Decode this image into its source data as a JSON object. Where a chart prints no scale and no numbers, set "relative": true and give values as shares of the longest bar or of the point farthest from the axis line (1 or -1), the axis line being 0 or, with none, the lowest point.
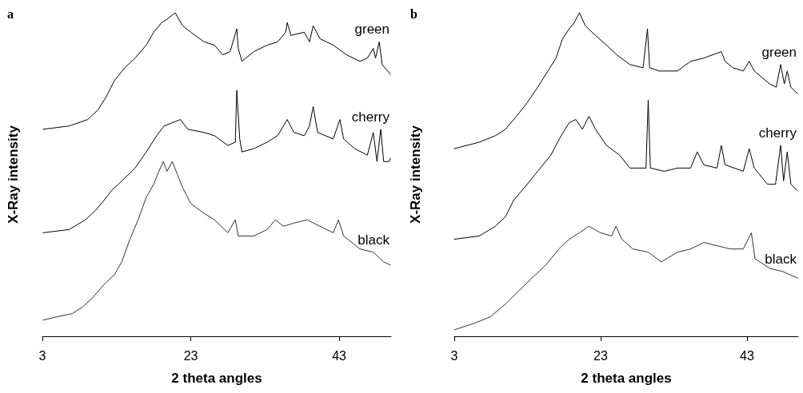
{
  "chart_data": [
    {
      "type": "line",
      "title": "a",
      "xlabel": "2 theta angles",
      "ylabel": "X-Ray intensity",
      "relative": true,
      "xlim": [
        3,
        50
      ],
      "xticks": [
        3,
        23,
        43
      ],
      "grid": false,
      "legend": false,
      "marker": "none",
      "line_style": "solid",
      "series": [
        {
          "name": "green",
          "color": "#000000",
          "x": [
            3.1,
            6.6,
            9.1,
            10.5,
            11.6,
            12.7,
            14.1,
            15.5,
            17.0,
            18.0,
            19.1,
            19.8,
            20.9,
            21.9,
            23.0,
            24.8,
            26.2,
            27.3,
            28.3,
            29.2,
            29.4,
            29.9,
            31.5,
            33.3,
            34.7,
            35.8,
            36.0,
            36.5,
            38.3,
            39.0,
            39.5,
            40.4,
            42.2,
            44.0,
            45.8,
            46.8,
            47.6,
            47.9,
            48.4,
            48.8,
            49.9
          ],
          "values": [
            0.64,
            0.65,
            0.67,
            0.7,
            0.74,
            0.79,
            0.83,
            0.86,
            0.9,
            0.94,
            0.97,
            0.98,
            1.0,
            0.96,
            0.94,
            0.91,
            0.9,
            0.87,
            0.88,
            0.95,
            0.89,
            0.85,
            0.88,
            0.9,
            0.91,
            0.94,
            0.97,
            0.93,
            0.94,
            0.91,
            0.96,
            0.92,
            0.9,
            0.87,
            0.85,
            0.86,
            0.89,
            0.86,
            0.91,
            0.84,
            0.81
          ]
        },
        {
          "name": "cherry",
          "color": "#000000",
          "x": [
            3.1,
            6.6,
            8.8,
            10.2,
            11.3,
            12.3,
            13.7,
            15.5,
            17.0,
            18.4,
            19.4,
            20.5,
            21.6,
            22.6,
            24.8,
            26.2,
            28.0,
            29.0,
            29.2,
            29.6,
            29.9,
            31.5,
            33.3,
            34.7,
            36.0,
            36.9,
            38.3,
            39.0,
            39.5,
            40.1,
            42.2,
            43.1,
            43.6,
            45.1,
            46.8,
            47.6,
            48.1,
            48.6,
            49.0,
            49.7,
            49.9
          ],
          "values": [
            0.32,
            0.33,
            0.36,
            0.39,
            0.42,
            0.45,
            0.48,
            0.52,
            0.57,
            0.62,
            0.65,
            0.66,
            0.67,
            0.64,
            0.63,
            0.62,
            0.59,
            0.6,
            0.76,
            0.61,
            0.57,
            0.58,
            0.6,
            0.62,
            0.67,
            0.63,
            0.62,
            0.65,
            0.71,
            0.63,
            0.61,
            0.67,
            0.61,
            0.58,
            0.56,
            0.63,
            0.54,
            0.64,
            0.54,
            0.54,
            0.55
          ]
        },
        {
          "name": "black",
          "color": "#333333",
          "x": [
            3.1,
            4.9,
            7.0,
            8.4,
            9.8,
            11.3,
            12.7,
            13.7,
            14.8,
            15.9,
            17.0,
            18.0,
            18.7,
            19.3,
            19.8,
            20.5,
            21.2,
            21.9,
            23.0,
            24.8,
            26.2,
            28.0,
            29.0,
            29.4,
            31.5,
            33.3,
            34.4,
            35.5,
            36.9,
            38.7,
            40.4,
            42.2,
            42.9,
            43.6,
            45.8,
            47.6,
            49.0,
            49.9
          ],
          "values": [
            0.05,
            0.06,
            0.07,
            0.09,
            0.12,
            0.16,
            0.19,
            0.23,
            0.3,
            0.36,
            0.43,
            0.47,
            0.51,
            0.54,
            0.51,
            0.54,
            0.5,
            0.46,
            0.41,
            0.38,
            0.36,
            0.32,
            0.36,
            0.31,
            0.31,
            0.33,
            0.36,
            0.34,
            0.35,
            0.36,
            0.34,
            0.32,
            0.36,
            0.31,
            0.27,
            0.26,
            0.23,
            0.22
          ]
        }
      ]
    },
    {
      "type": "line",
      "title": "b",
      "xlabel": "2 theta angles",
      "ylabel": "X-Ray intensity",
      "relative": true,
      "xlim": [
        3,
        50
      ],
      "xticks": [
        3,
        23,
        43
      ],
      "grid": false,
      "legend": false,
      "marker": "none",
      "line_style": "solid",
      "series": [
        {
          "name": "green",
          "color": "#000000",
          "x": [
            3.0,
            6.4,
            8.6,
            10.0,
            11.5,
            12.9,
            14.4,
            15.8,
            16.9,
            17.8,
            18.7,
            19.4,
            20.1,
            20.9,
            22.3,
            23.8,
            25.2,
            27.0,
            28.8,
            29.4,
            29.7,
            31.0,
            33.5,
            35.3,
            37.1,
            39.5,
            40.0,
            41.1,
            42.5,
            43.3,
            44.0,
            46.1,
            47.0,
            47.6,
            48.1,
            48.5,
            49.0,
            49.9
          ],
          "values": [
            0.58,
            0.6,
            0.62,
            0.64,
            0.68,
            0.72,
            0.77,
            0.82,
            0.86,
            0.92,
            0.95,
            0.97,
            1.0,
            0.96,
            0.93,
            0.9,
            0.87,
            0.84,
            0.83,
            0.95,
            0.83,
            0.82,
            0.82,
            0.85,
            0.86,
            0.88,
            0.85,
            0.83,
            0.82,
            0.85,
            0.82,
            0.78,
            0.77,
            0.84,
            0.78,
            0.82,
            0.77,
            0.75
          ]
        },
        {
          "name": "cherry",
          "color": "#000000",
          "x": [
            3.0,
            6.4,
            8.6,
            10.0,
            11.1,
            12.6,
            14.4,
            16.2,
            17.6,
            18.7,
            19.6,
            20.5,
            21.4,
            22.3,
            23.8,
            25.6,
            27.0,
            28.8,
            29.2,
            29.5,
            29.8,
            31.7,
            33.5,
            35.3,
            36.2,
            37.1,
            38.9,
            39.5,
            40.0,
            42.5,
            43.3,
            44.0,
            45.8,
            46.9,
            47.6,
            48.0,
            48.5,
            49.0,
            49.9
          ],
          "values": [
            0.3,
            0.31,
            0.34,
            0.37,
            0.42,
            0.46,
            0.51,
            0.56,
            0.62,
            0.66,
            0.67,
            0.64,
            0.68,
            0.64,
            0.59,
            0.56,
            0.52,
            0.52,
            0.52,
            0.73,
            0.52,
            0.51,
            0.52,
            0.52,
            0.57,
            0.53,
            0.52,
            0.59,
            0.53,
            0.51,
            0.58,
            0.52,
            0.47,
            0.47,
            0.59,
            0.48,
            0.57,
            0.47,
            0.45
          ]
        },
        {
          "name": "black",
          "color": "#333333",
          "x": [
            3.0,
            5.7,
            7.9,
            10.0,
            11.8,
            13.6,
            15.5,
            17.3,
            18.7,
            20.1,
            21.4,
            23.0,
            24.5,
            25.1,
            25.9,
            27.4,
            29.5,
            31.3,
            33.5,
            35.3,
            37.1,
            38.9,
            40.7,
            42.5,
            43.6,
            44.1,
            46.1,
            47.9,
            49.9
          ],
          "values": [
            0.02,
            0.04,
            0.06,
            0.1,
            0.14,
            0.18,
            0.22,
            0.27,
            0.3,
            0.32,
            0.34,
            0.32,
            0.31,
            0.34,
            0.3,
            0.27,
            0.26,
            0.23,
            0.26,
            0.27,
            0.29,
            0.28,
            0.27,
            0.27,
            0.32,
            0.24,
            0.21,
            0.2,
            0.18
          ]
        }
      ]
    }
  ]
}
